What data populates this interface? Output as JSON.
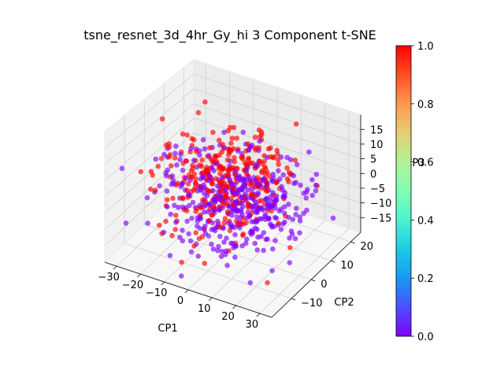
{
  "chart_data": {
    "type": "scatter",
    "projection": "3d",
    "title": "tsne_resnet_3d_4hr_Gy_hi 3 Component t-SNE",
    "xlabel": "CP1",
    "ylabel": "CP2",
    "zlabel": "CP3",
    "xlim": [
      -35,
      35
    ],
    "ylim": [
      -20,
      25
    ],
    "zlim": [
      -20,
      20
    ],
    "xticks": [
      -30,
      -20,
      -10,
      0,
      10,
      20,
      30
    ],
    "yticks": [
      -10,
      0,
      10,
      20
    ],
    "zticks": [
      -15,
      -10,
      -5,
      0,
      5,
      10,
      15
    ],
    "grid": true,
    "colormap": "rainbow",
    "colorbar": {
      "range": [
        0.0,
        1.0
      ],
      "ticks": [
        "0.0",
        "0.2",
        "0.4",
        "0.6",
        "0.8",
        "1.0"
      ]
    },
    "series": [
      {
        "label_value": 0.0,
        "color": "#8000ff",
        "count": 430
      },
      {
        "label_value": 1.0,
        "color": "#ff0000",
        "count": 330
      }
    ]
  }
}
